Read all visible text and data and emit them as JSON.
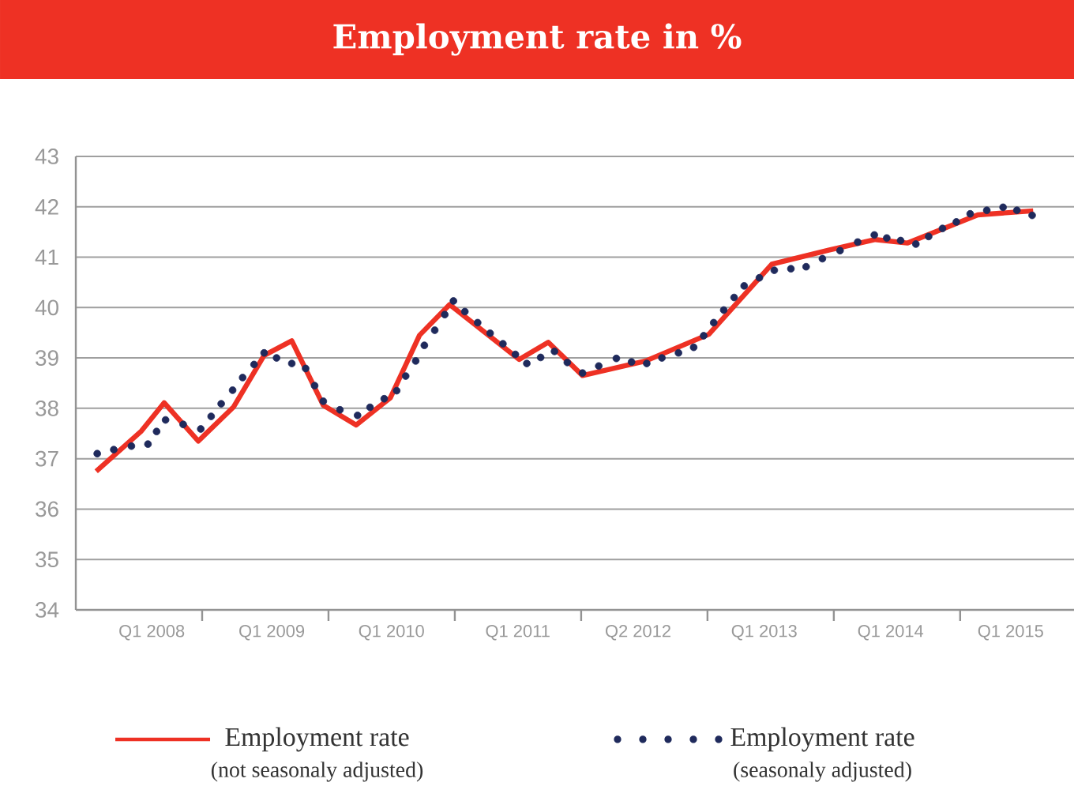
{
  "chart_data": {
    "type": "line",
    "title": "Employment rate in %",
    "xlim": [
      "2008-01-01",
      "2015-11-26"
    ],
    "ylim": [
      34,
      43
    ],
    "yticks": [
      34,
      35,
      36,
      37,
      38,
      39,
      40,
      41,
      42,
      43
    ],
    "xticks": [
      {
        "value": "2008-08-08",
        "label": "Q1 2008"
      },
      {
        "value": "2009-01-01",
        "label": null
      },
      {
        "value": "2009-07-21",
        "label": "Q1 2009"
      },
      {
        "value": "2010-01-01",
        "label": null
      },
      {
        "value": "2010-07-02",
        "label": "Q1 2010"
      },
      {
        "value": "2011-01-01",
        "label": null
      },
      {
        "value": "2011-07-02",
        "label": "Q1 2011"
      },
      {
        "value": "2012-01-01",
        "label": null
      },
      {
        "value": "2012-06-14",
        "label": "Q2 2012"
      },
      {
        "value": "2013-01-01",
        "label": null
      },
      {
        "value": "2013-06-14",
        "label": "Q1 2013"
      },
      {
        "value": "2014-01-01",
        "label": null
      },
      {
        "value": "2014-06-14",
        "label": "Q1 2014"
      },
      {
        "value": "2015-01-01",
        "label": null
      },
      {
        "value": "2015-05-27",
        "label": "Q1 2015"
      }
    ],
    "grid": "y",
    "legend": "bottom",
    "annotations": [
      "(not seasonaly adjusted)",
      "(seasonaly adjusted)"
    ],
    "series": [
      {
        "name": "Employment rate",
        "type": "line",
        "color": "#ee3124",
        "marker": "none",
        "line_style": "solid",
        "x": [
          "2008-02-29",
          "2008-07-09",
          "2008-09-13",
          "2008-12-21",
          "2009-04-02",
          "2009-06-29",
          "2009-09-17",
          "2009-12-17",
          "2010-03-22",
          "2010-06-29",
          "2010-09-21",
          "2010-12-17",
          "2011-07-06",
          "2011-09-28",
          "2012-01-05",
          "2012-07-06",
          "2013-01-05",
          "2013-07-06",
          "2013-12-17",
          "2014-05-01",
          "2014-08-01",
          "2015-02-21",
          "2015-07-31"
        ],
        "values": [
          36.75,
          37.55,
          38.11,
          37.35,
          38.03,
          39.05,
          39.34,
          38.06,
          37.67,
          38.21,
          39.45,
          40.06,
          38.97,
          39.31,
          38.65,
          38.94,
          39.47,
          40.86,
          41.14,
          41.35,
          41.28,
          41.84,
          41.92
        ]
      },
      {
        "name": "Employment rate",
        "type": "scatter",
        "color": "#1f2a5c",
        "marker": "circle",
        "x": [
          "2008-03-03",
          "2008-04-20",
          "2008-06-10",
          "2008-07-28",
          "2008-08-22",
          "2008-09-17",
          "2008-11-07",
          "2008-12-28",
          "2009-01-27",
          "2009-02-25",
          "2009-03-30",
          "2009-04-28",
          "2009-05-31",
          "2009-06-29",
          "2009-08-04",
          "2009-09-17",
          "2009-10-27",
          "2009-11-22",
          "2009-12-17",
          "2010-02-03",
          "2010-03-26",
          "2010-05-01",
          "2010-06-11",
          "2010-07-17",
          "2010-08-12",
          "2010-09-10",
          "2010-10-05",
          "2010-11-04",
          "2010-12-03",
          "2010-12-28",
          "2011-01-30",
          "2011-03-08",
          "2011-04-13",
          "2011-05-20",
          "2011-06-25",
          "2011-07-28",
          "2011-09-06",
          "2011-10-16",
          "2011-11-22",
          "2012-01-05",
          "2012-02-21",
          "2012-04-12",
          "2012-05-26",
          "2012-07-09",
          "2012-08-22",
          "2012-10-09",
          "2012-11-22",
          "2012-12-21",
          "2013-01-19",
          "2013-02-17",
          "2013-03-19",
          "2013-04-17",
          "2013-05-31",
          "2013-07-13",
          "2013-08-30",
          "2013-10-13",
          "2013-11-29",
          "2014-01-19",
          "2014-03-11",
          "2014-04-28",
          "2014-06-03",
          "2014-07-13",
          "2014-08-26",
          "2014-10-02",
          "2014-11-11",
          "2014-12-21",
          "2015-01-30",
          "2015-03-19",
          "2015-05-05",
          "2015-06-14",
          "2015-07-28"
        ],
        "values": [
          37.1,
          37.18,
          37.25,
          37.29,
          37.54,
          37.77,
          37.68,
          37.59,
          37.84,
          38.09,
          38.36,
          38.61,
          38.87,
          39.1,
          39.0,
          38.89,
          38.79,
          38.45,
          38.14,
          37.97,
          37.86,
          38.02,
          38.19,
          38.35,
          38.64,
          38.94,
          39.25,
          39.55,
          39.86,
          40.13,
          39.92,
          39.7,
          39.49,
          39.28,
          39.07,
          38.89,
          39.01,
          39.13,
          38.91,
          38.7,
          38.84,
          38.99,
          38.92,
          38.89,
          39.0,
          39.1,
          39.21,
          39.44,
          39.7,
          39.95,
          40.2,
          40.43,
          40.59,
          40.74,
          40.77,
          40.81,
          40.97,
          41.13,
          41.3,
          41.44,
          41.38,
          41.33,
          41.26,
          41.41,
          41.57,
          41.7,
          41.86,
          41.93,
          41.99,
          41.93,
          41.83
        ]
      }
    ]
  }
}
